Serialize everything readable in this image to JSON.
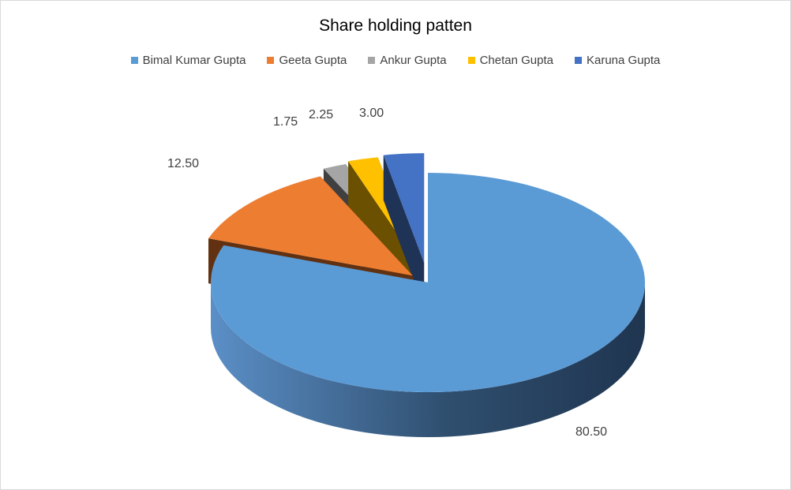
{
  "chart_data": {
    "type": "pie",
    "title": "Share holding patten",
    "legend_position": "top",
    "slices": [
      {
        "name": "Bimal Kumar Gupta",
        "value": 80.5,
        "label": "80.50",
        "color": "#5B9BD5",
        "side": "#2E4A66"
      },
      {
        "name": "Geeta Gupta",
        "value": 12.5,
        "label": "12.50",
        "color": "#ED7D31",
        "side": "#613112"
      },
      {
        "name": "Ankur Gupta",
        "value": 1.75,
        "label": "1.75",
        "color": "#A5A5A5",
        "side": "#404040"
      },
      {
        "name": "Chetan Gupta",
        "value": 2.25,
        "label": "2.25",
        "color": "#FFC000",
        "side": "#6A5000"
      },
      {
        "name": "Karuna Gupta",
        "value": 3.0,
        "label": "3.00",
        "color": "#4472C4",
        "side": "#1F3356"
      }
    ]
  }
}
